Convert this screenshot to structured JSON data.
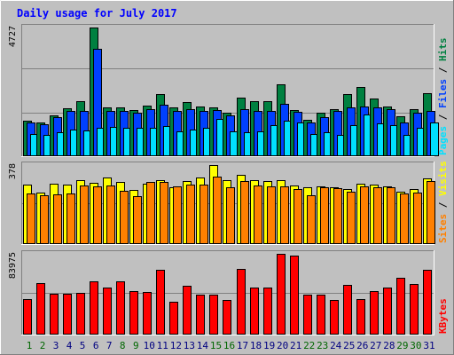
{
  "chart_data": {
    "type": "bar",
    "title": "Daily usage for July 2017",
    "categories": [
      "1",
      "2",
      "3",
      "4",
      "5",
      "6",
      "7",
      "8",
      "9",
      "10",
      "11",
      "12",
      "13",
      "14",
      "15",
      "16",
      "17",
      "18",
      "19",
      "20",
      "21",
      "22",
      "23",
      "24",
      "25",
      "26",
      "27",
      "28",
      "29",
      "30",
      "31"
    ],
    "weekend_days": [
      "1",
      "2",
      "8",
      "9",
      "15",
      "16",
      "22",
      "23",
      "29",
      "30"
    ],
    "panels": [
      {
        "id": "hits-files-pages",
        "scale_max": 4727,
        "scale_label": "4727",
        "series": [
          {
            "name": "Hits",
            "color": "#008040",
            "values": [
              1270,
              1220,
              1490,
              1730,
              1990,
              4727,
              1760,
              1760,
              1680,
              1830,
              2250,
              1760,
              1960,
              1820,
              1760,
              1570,
              2130,
              1990,
              2010,
              2630,
              1660,
              1310,
              1570,
              1710,
              2250,
              2520,
              2110,
              1790,
              1450,
              1710,
              2290
            ]
          },
          {
            "name": "Files",
            "color": "#0040ff",
            "values": [
              1200,
              1150,
              1400,
              1640,
              1650,
              3950,
              1650,
              1650,
              1590,
              1700,
              1870,
              1650,
              1710,
              1640,
              1680,
              1480,
              1700,
              1650,
              1650,
              1910,
              1610,
              1230,
              1400,
              1640,
              1760,
              1800,
              1760,
              1700,
              1210,
              1560,
              1640
            ]
          },
          {
            "name": "Pages",
            "color": "#00e0ff",
            "values": [
              790,
              760,
              860,
              940,
              930,
              1010,
              1040,
              1010,
              1010,
              1020,
              1080,
              900,
              940,
              1010,
              1330,
              890,
              860,
              880,
              1120,
              1280,
              1230,
              790,
              860,
              760,
              1130,
              1510,
              1190,
              1100,
              770,
              1010,
              1220
            ]
          }
        ],
        "labels": [
          "Pages",
          "Files",
          "Hits"
        ]
      },
      {
        "id": "visits-sites",
        "scale_max": 378,
        "scale_label": "378",
        "series": [
          {
            "name": "Visits",
            "color": "#ffff00",
            "values": [
              282,
              246,
              287,
              285,
              305,
              293,
              320,
              295,
              256,
              289,
              303,
              272,
              300,
              317,
              378,
              306,
              331,
              303,
              299,
              303,
              281,
              270,
              275,
              270,
              263,
              288,
              283,
              277,
              250,
              262,
              315
            ]
          },
          {
            "name": "Sites",
            "color": "#ff8000",
            "values": [
              240,
              231,
              236,
              242,
              279,
              276,
              278,
              254,
              228,
              297,
              297,
              277,
              282,
              284,
              324,
              269,
              299,
              279,
              276,
              276,
              261,
              231,
              269,
              267,
              247,
              276,
              270,
              272,
              239,
              243,
              301
            ]
          }
        ],
        "labels": [
          "Sites",
          "Visits"
        ]
      },
      {
        "id": "kbytes",
        "scale_max": 83975,
        "scale_label": "83975",
        "series": [
          {
            "name": "KBytes",
            "color": "#ff0000",
            "values": [
              36800,
              53300,
              42100,
              42300,
              43200,
              55000,
              48700,
              55200,
              44800,
              44000,
              67200,
              33500,
              50000,
              40600,
              40600,
              35200,
              68400,
              48600,
              48300,
              83975,
              82500,
              40600,
              40600,
              35200,
              51400,
              36200,
              44800,
              48600,
              58400,
              52100,
              66800
            ]
          }
        ],
        "labels": [
          "KBytes"
        ]
      }
    ],
    "colors": {
      "background": "#c0c0c0",
      "title": "#0000ff",
      "weekday_label": "#000080",
      "weekend_label": "#006600",
      "gridline": "#808080"
    }
  }
}
